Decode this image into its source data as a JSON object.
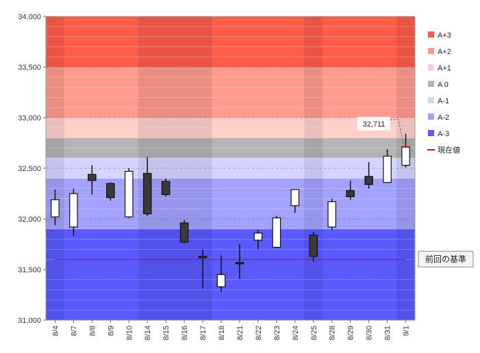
{
  "chart_data": {
    "type": "candlestick",
    "ylim": [
      31000,
      34000
    ],
    "y_ticks": [
      "31,000",
      "31,500",
      "32,000",
      "32,500",
      "33,000",
      "33,500",
      "34,000"
    ],
    "y_tick_values": [
      31000,
      31500,
      32000,
      32500,
      33000,
      33500,
      34000
    ],
    "categories": [
      "8/4",
      "8/7",
      "8/8",
      "8/9",
      "8/10",
      "8/14",
      "8/15",
      "8/16",
      "8/17",
      "8/18",
      "8/21",
      "8/22",
      "8/23",
      "8/24",
      "8/25",
      "8/28",
      "8/29",
      "8/30",
      "8/31",
      "9/1"
    ],
    "candles": [
      {
        "date": "8/4",
        "open": 32020,
        "high": 32290,
        "low": 31940,
        "close": 32190
      },
      {
        "date": "8/7",
        "open": 31920,
        "high": 32300,
        "low": 31830,
        "close": 32250
      },
      {
        "date": "8/8",
        "open": 32440,
        "high": 32530,
        "low": 32240,
        "close": 32380
      },
      {
        "date": "8/9",
        "open": 32350,
        "high": 32360,
        "low": 32180,
        "close": 32210
      },
      {
        "date": "8/10",
        "open": 32020,
        "high": 32500,
        "low": 32010,
        "close": 32470
      },
      {
        "date": "8/14",
        "open": 32450,
        "high": 32610,
        "low": 32030,
        "close": 32050
      },
      {
        "date": "8/15",
        "open": 32370,
        "high": 32400,
        "low": 32220,
        "close": 32240
      },
      {
        "date": "8/16",
        "open": 31960,
        "high": 31990,
        "low": 31760,
        "close": 31770
      },
      {
        "date": "8/17",
        "open": 31630,
        "high": 31700,
        "low": 31310,
        "close": 31620
      },
      {
        "date": "8/18",
        "open": 31330,
        "high": 31640,
        "low": 31280,
        "close": 31450
      },
      {
        "date": "8/21",
        "open": 31570,
        "high": 31750,
        "low": 31410,
        "close": 31560
      },
      {
        "date": "8/22",
        "open": 31790,
        "high": 31890,
        "low": 31700,
        "close": 31860
      },
      {
        "date": "8/23",
        "open": 31720,
        "high": 32030,
        "low": 31710,
        "close": 32010
      },
      {
        "date": "8/24",
        "open": 32130,
        "high": 32290,
        "low": 32060,
        "close": 32290
      },
      {
        "date": "8/25",
        "open": 31840,
        "high": 31870,
        "low": 31580,
        "close": 31630
      },
      {
        "date": "8/28",
        "open": 31920,
        "high": 32200,
        "low": 31890,
        "close": 32170
      },
      {
        "date": "8/29",
        "open": 32280,
        "high": 32380,
        "low": 32190,
        "close": 32220
      },
      {
        "date": "8/30",
        "open": 32420,
        "high": 32560,
        "low": 32300,
        "close": 32340
      },
      {
        "date": "8/31",
        "open": 32360,
        "high": 32690,
        "low": 32360,
        "close": 32620
      },
      {
        "date": "9/1",
        "open": 32530,
        "high": 32840,
        "low": 32510,
        "close": 32711
      }
    ],
    "bands": [
      {
        "name": "A+3",
        "from": 33500,
        "to": 34000,
        "color": "#ff5c4a"
      },
      {
        "name": "A+2",
        "from": 33000,
        "to": 33500,
        "color": "#ff9a8e"
      },
      {
        "name": "A+1",
        "from": 32800,
        "to": 33000,
        "color": "#ffcfca"
      },
      {
        "name": "A 0",
        "from": 32600,
        "to": 32800,
        "color": "#b4b4b4"
      },
      {
        "name": "A-1",
        "from": 32400,
        "to": 32600,
        "color": "#d4d4ff"
      },
      {
        "name": "A-2",
        "from": 31900,
        "to": 32400,
        "color": "#a2a2ff"
      },
      {
        "name": "A-3",
        "from": 31000,
        "to": 31900,
        "color": "#5a5aff"
      }
    ],
    "current_price": {
      "label": "現在値",
      "value": 32711,
      "display": "32,711",
      "color": "#cc0000"
    },
    "reference_line": {
      "label": "前回の基準",
      "value": 31600,
      "color": "#cc0000"
    },
    "legend_position": "right",
    "grid": true
  }
}
